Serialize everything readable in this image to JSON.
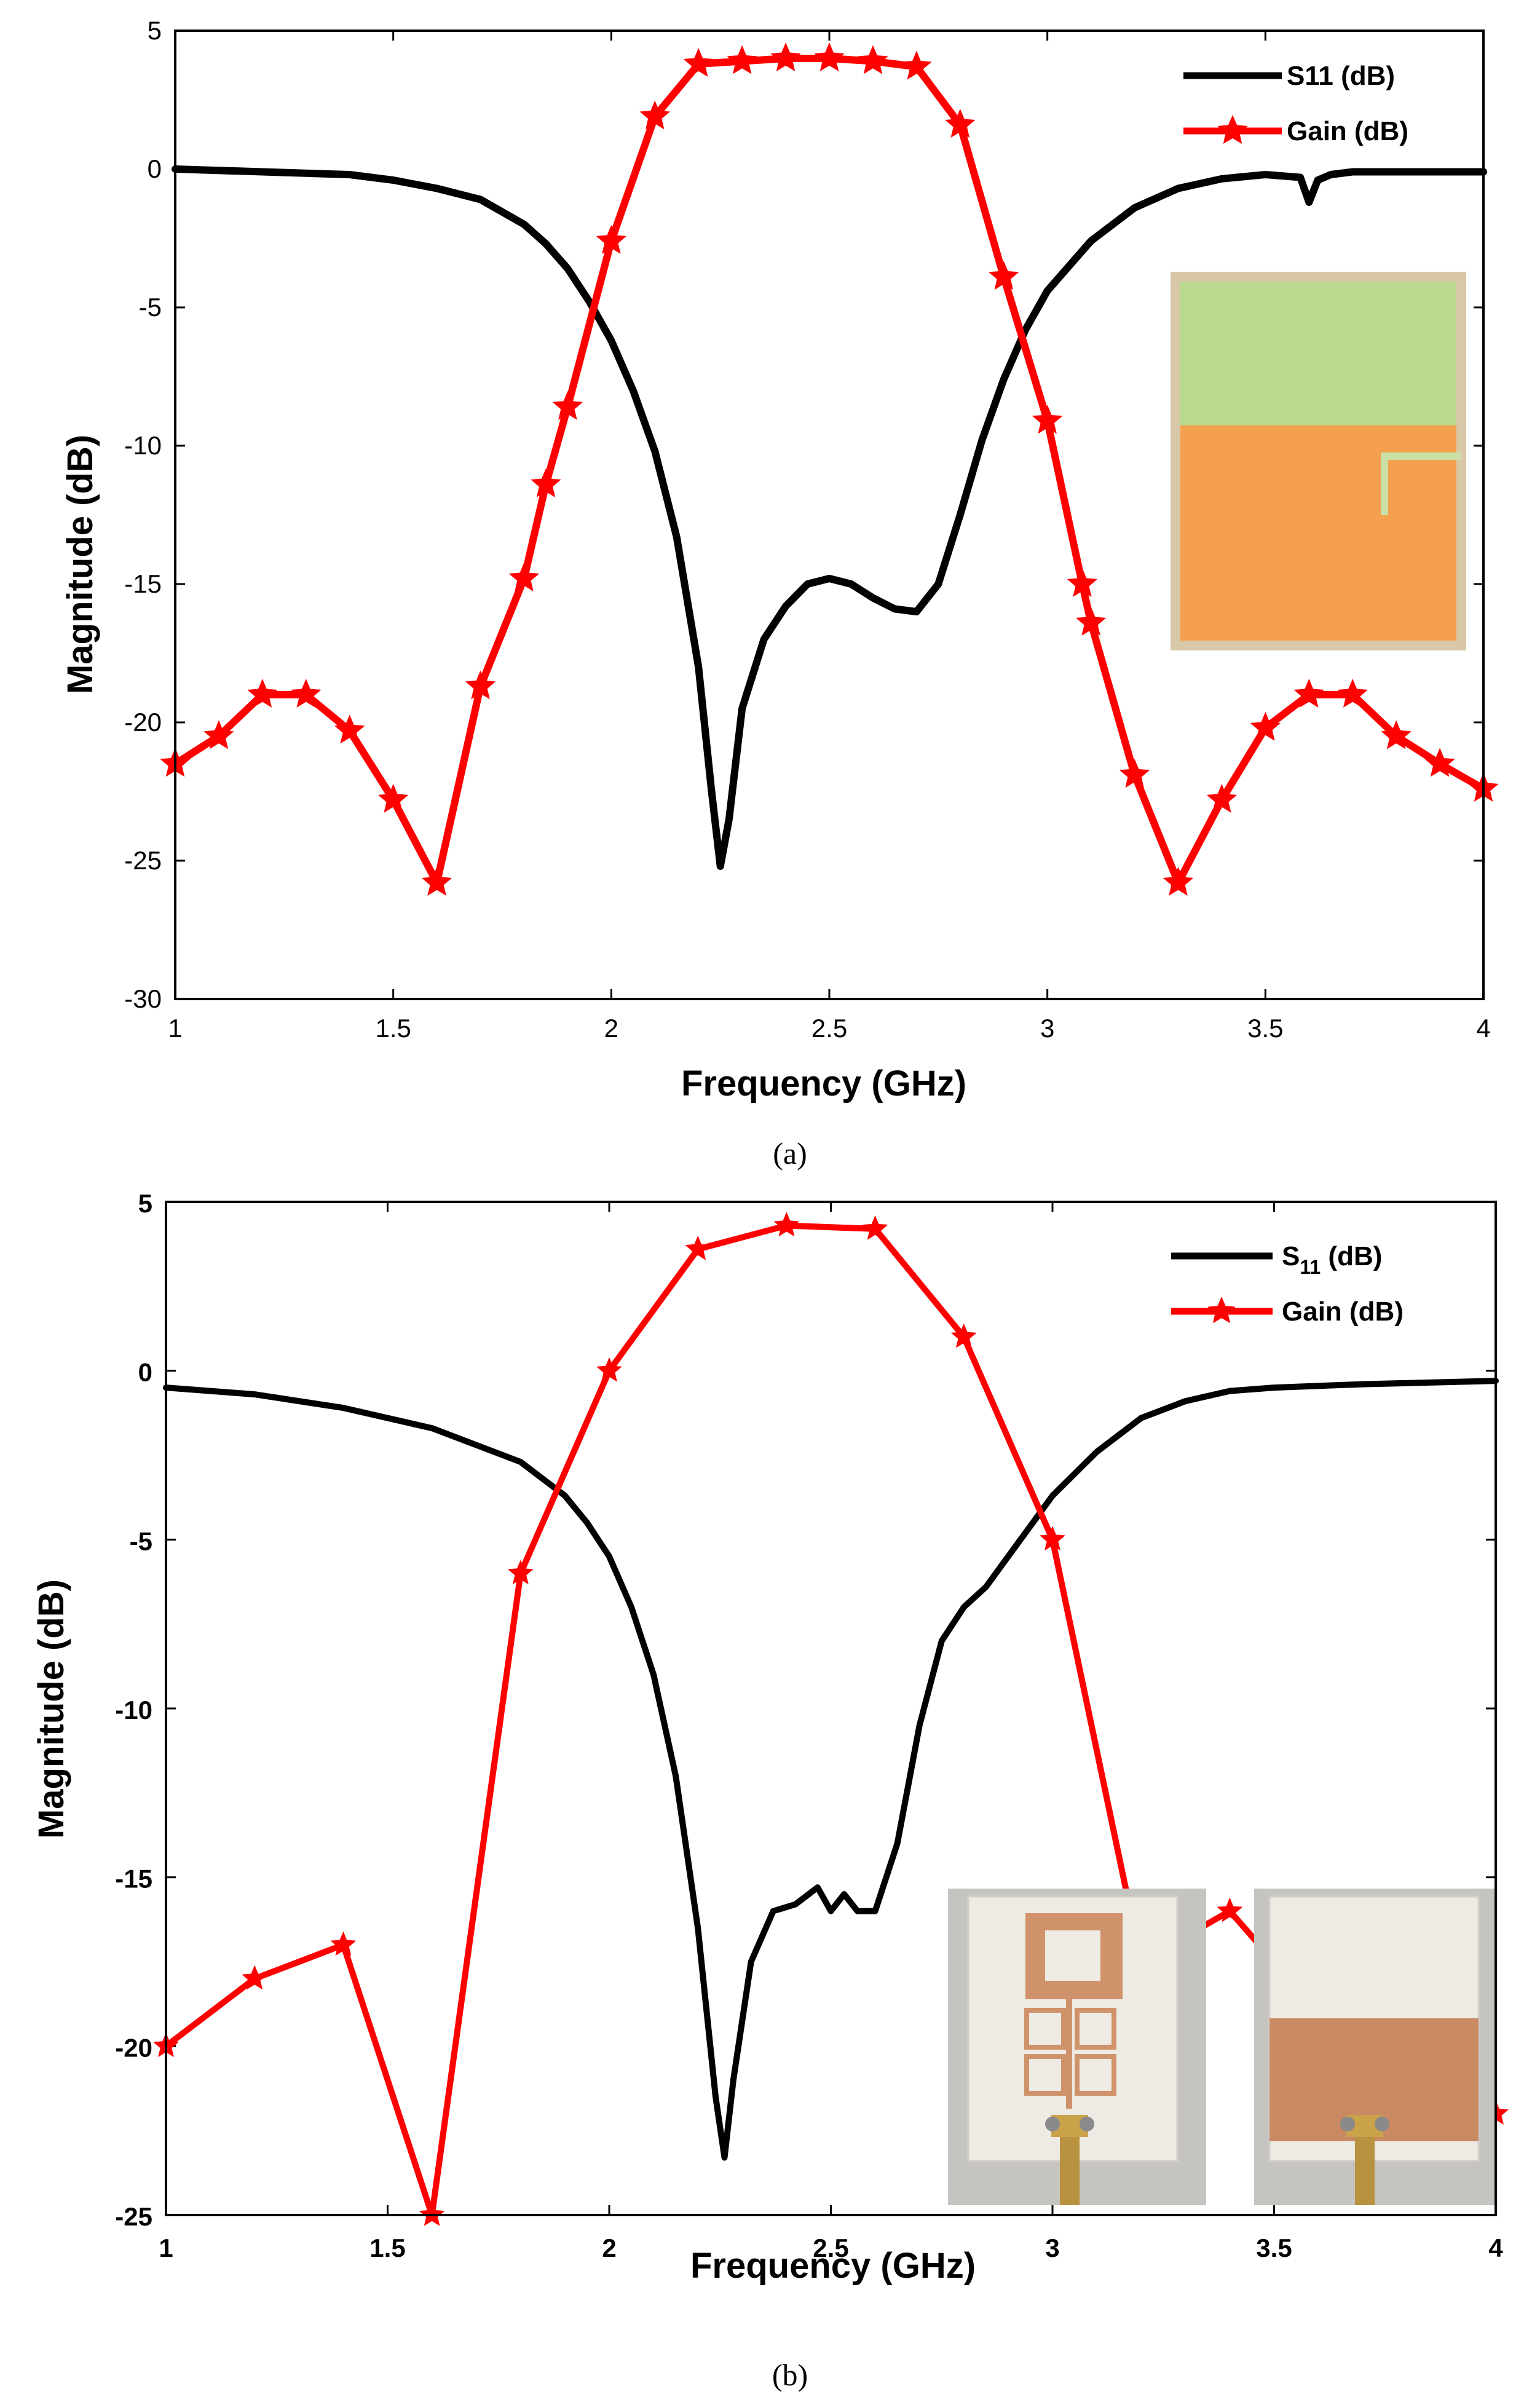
{
  "colors": {
    "s11": "#000000",
    "gain": "#ff0000",
    "axis": "#000000",
    "inset_top": "#b9d98f",
    "inset_bottom": "#f4a04f",
    "inset_line": "#c9e0a6"
  },
  "chart_data": [
    {
      "id": "a",
      "type": "line",
      "caption": "(a)",
      "xlabel": "Frequency (GHz)",
      "ylabel": "Magnitude (dB)",
      "xlim": [
        1,
        4
      ],
      "ylim": [
        -30,
        5
      ],
      "xticks": [
        1,
        1.5,
        2,
        2.5,
        3,
        3.5,
        4
      ],
      "xtick_labels": [
        "1",
        "1.5",
        "2",
        "2.5",
        "3",
        "3.5",
        "4"
      ],
      "yticks": [
        5,
        0,
        -5,
        -10,
        -15,
        -20,
        -25,
        -30
      ],
      "ytick_labels": [
        "5",
        "0",
        "-5",
        "-10",
        "-15",
        "-20",
        "-25",
        "-30"
      ],
      "legend_position": "top-right",
      "inset": "antenna layout (top view)",
      "series": [
        {
          "name": "S11 (dB)",
          "legend_label": "S11 (dB)",
          "color": "#000000",
          "marker": "none",
          "x": [
            1.0,
            1.2,
            1.4,
            1.5,
            1.6,
            1.7,
            1.8,
            1.85,
            1.9,
            1.95,
            2.0,
            2.05,
            2.1,
            2.15,
            2.2,
            2.23,
            2.25,
            2.27,
            2.3,
            2.35,
            2.4,
            2.45,
            2.5,
            2.55,
            2.6,
            2.65,
            2.7,
            2.75,
            2.8,
            2.85,
            2.9,
            2.95,
            3.0,
            3.1,
            3.2,
            3.3,
            3.4,
            3.5,
            3.58,
            3.6,
            3.62,
            3.65,
            3.7,
            3.8,
            4.0
          ],
          "values": [
            0.0,
            -0.1,
            -0.2,
            -0.4,
            -0.7,
            -1.1,
            -2.0,
            -2.7,
            -3.6,
            -4.8,
            -6.2,
            -8.0,
            -10.2,
            -13.3,
            -18.0,
            -22.5,
            -25.2,
            -23.5,
            -19.5,
            -17.0,
            -15.8,
            -15.0,
            -14.8,
            -15.0,
            -15.5,
            -15.9,
            -16.0,
            -15.0,
            -12.5,
            -9.8,
            -7.6,
            -5.8,
            -4.4,
            -2.6,
            -1.4,
            -0.7,
            -0.35,
            -0.2,
            -0.3,
            -1.2,
            -0.4,
            -0.2,
            -0.1,
            -0.1,
            -0.1
          ]
        },
        {
          "name": "Gain (dB)",
          "legend_label": "Gain (dB)",
          "color": "#ff0000",
          "marker": "star",
          "x": [
            1.0,
            1.1,
            1.2,
            1.3,
            1.4,
            1.5,
            1.6,
            1.7,
            1.8,
            1.85,
            1.9,
            2.0,
            2.1,
            2.2,
            2.3,
            2.4,
            2.5,
            2.6,
            2.7,
            2.8,
            2.9,
            3.0,
            3.08,
            3.1,
            3.2,
            3.3,
            3.4,
            3.5,
            3.6,
            3.7,
            3.8,
            3.9,
            4.0
          ],
          "values": [
            -21.5,
            -20.5,
            -19.0,
            -19.0,
            -20.3,
            -22.8,
            -25.8,
            -18.7,
            -14.8,
            -11.4,
            -8.6,
            -2.6,
            1.9,
            3.8,
            3.9,
            4.0,
            4.0,
            3.9,
            3.7,
            1.6,
            -3.9,
            -9.1,
            -15.0,
            -16.4,
            -21.9,
            -25.8,
            -22.8,
            -20.2,
            -19.0,
            -19.0,
            -20.5,
            -21.5,
            -22.4
          ]
        }
      ]
    },
    {
      "id": "b",
      "type": "line",
      "caption": "(b)",
      "xlabel": "Frequency (GHz)",
      "ylabel": "Magnitude (dB)",
      "xlim": [
        1,
        4
      ],
      "ylim": [
        -25,
        5
      ],
      "xticks": [
        1,
        1.5,
        2,
        2.5,
        3,
        3.5,
        4
      ],
      "xtick_labels": [
        "1",
        "1.5",
        "2",
        "2.5",
        "3",
        "3.5",
        "4"
      ],
      "yticks": [
        5,
        0,
        -5,
        -10,
        -15,
        -20,
        -25
      ],
      "ytick_labels": [
        "5",
        "0",
        "-5",
        "-10",
        "-15",
        "-20",
        "-25"
      ],
      "legend_position": "top-right",
      "inset": "fabricated prototype photos (front and back)",
      "series": [
        {
          "name": "S11 (dB)",
          "legend_main": "S",
          "legend_sub": "11",
          "legend_suffix": " (dB)",
          "color": "#000000",
          "marker": "none",
          "x": [
            1.0,
            1.2,
            1.4,
            1.6,
            1.7,
            1.8,
            1.85,
            1.9,
            1.95,
            2.0,
            2.05,
            2.1,
            2.15,
            2.2,
            2.24,
            2.26,
            2.28,
            2.32,
            2.37,
            2.42,
            2.47,
            2.5,
            2.53,
            2.56,
            2.6,
            2.65,
            2.7,
            2.75,
            2.8,
            2.85,
            2.9,
            2.95,
            3.0,
            3.1,
            3.2,
            3.3,
            3.4,
            3.5,
            3.7,
            4.0
          ],
          "values": [
            -0.5,
            -0.7,
            -1.1,
            -1.7,
            -2.2,
            -2.7,
            -3.2,
            -3.7,
            -4.5,
            -5.5,
            -7.0,
            -9.0,
            -12.0,
            -16.5,
            -21.5,
            -23.3,
            -21.0,
            -17.5,
            -16.0,
            -15.8,
            -15.3,
            -16.0,
            -15.5,
            -16.0,
            -16.0,
            -14.0,
            -10.5,
            -8.0,
            -7.0,
            -6.4,
            -5.5,
            -4.6,
            -3.7,
            -2.4,
            -1.4,
            -0.9,
            -0.6,
            -0.5,
            -0.4,
            -0.3
          ]
        },
        {
          "name": "Gain (dB)",
          "legend_label": "Gain (dB)",
          "color": "#ff0000",
          "marker": "star",
          "x": [
            1.0,
            1.2,
            1.4,
            1.6,
            1.8,
            2.0,
            2.2,
            2.4,
            2.6,
            2.8,
            3.0,
            3.2,
            3.4,
            3.6,
            3.8,
            4.0
          ],
          "values": [
            -20.0,
            -18.0,
            -17.0,
            -25.0,
            -6.0,
            0.0,
            3.6,
            4.3,
            4.2,
            1.0,
            -5.0,
            -17.5,
            -16.0,
            -19.0,
            -21.0,
            -22.0
          ]
        }
      ]
    }
  ]
}
